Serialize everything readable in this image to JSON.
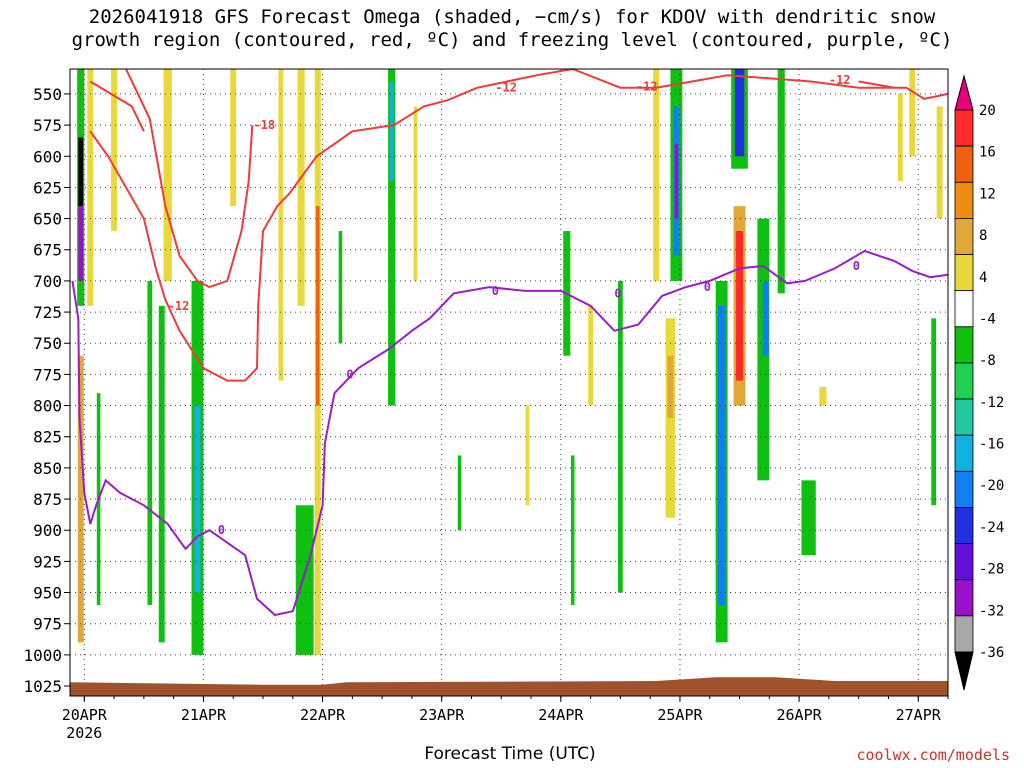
{
  "title": {
    "line1": "2026041918 GFS Forecast Omega (shaded, −cm/s) for KDOV with dendritic snow",
    "line2": "growth region (contoured, red, ºC) and freezing level (contoured, purple, ºC)"
  },
  "credit": "coolwx.com/models",
  "chart_data": {
    "type": "heatmap",
    "xlabel": "Forecast Time (UTC)",
    "x_ticks": [
      {
        "label": "20APR",
        "sub": "2026",
        "day": 0
      },
      {
        "label": "21APR",
        "day": 1
      },
      {
        "label": "22APR",
        "day": 2
      },
      {
        "label": "23APR",
        "day": 3
      },
      {
        "label": "24APR",
        "day": 4
      },
      {
        "label": "25APR",
        "day": 5
      },
      {
        "label": "26APR",
        "day": 6
      },
      {
        "label": "27APR",
        "day": 7
      }
    ],
    "xlim_days": [
      -0.12,
      7.25
    ],
    "y_levels": [
      550,
      575,
      600,
      625,
      650,
      675,
      700,
      725,
      750,
      775,
      800,
      825,
      850,
      875,
      900,
      925,
      950,
      975,
      1000,
      1025
    ],
    "ylim_hpa": [
      530,
      1033
    ],
    "grid": "dotted",
    "colorbar": {
      "labels": [
        "20",
        "16",
        "12",
        "8",
        "4",
        "-4",
        "-8",
        "-12",
        "-16",
        "-20",
        "-24",
        "-28",
        "-32",
        "-36"
      ],
      "colors": [
        "#e8007a",
        "#ff2b2b",
        "#f06010",
        "#f08c14",
        "#e0a838",
        "#e8d83a",
        "#ffffff",
        "#10c010",
        "#20d050",
        "#20c8a0",
        "#10b0e0",
        "#1080f0",
        "#2030e0",
        "#6010d8",
        "#9a10c8",
        "#a8a8a8",
        "#000000"
      ]
    },
    "surface_color": "#a0522d",
    "omega_cells": [
      {
        "day": 0.05,
        "p1": 530,
        "p2": 720,
        "w": 0.05,
        "c": "#e8d83a"
      },
      {
        "day": 0.25,
        "p1": 530,
        "p2": 660,
        "w": 0.05,
        "c": "#e8d83a"
      },
      {
        "day": 0.7,
        "p1": 530,
        "p2": 700,
        "w": 0.07,
        "c": "#e8d83a"
      },
      {
        "day": -0.03,
        "p1": 530,
        "p2": 720,
        "w": 0.06,
        "c": "#10c010"
      },
      {
        "day": -0.03,
        "p1": 585,
        "p2": 640,
        "w": 0.04,
        "c": "#000000"
      },
      {
        "day": -0.03,
        "p1": 640,
        "p2": 700,
        "w": 0.04,
        "c": "#9a10c8"
      },
      {
        "day": -0.03,
        "p1": 760,
        "p2": 990,
        "w": 0.05,
        "c": "#e0a838"
      },
      {
        "day": 0.12,
        "p1": 790,
        "p2": 960,
        "w": 0.03,
        "c": "#10c010"
      },
      {
        "day": 0.55,
        "p1": 700,
        "p2": 960,
        "w": 0.04,
        "c": "#10c010"
      },
      {
        "day": 0.65,
        "p1": 720,
        "p2": 990,
        "w": 0.05,
        "c": "#10c010"
      },
      {
        "day": 0.95,
        "p1": 700,
        "p2": 1000,
        "w": 0.1,
        "c": "#10c010"
      },
      {
        "day": 0.95,
        "p1": 800,
        "p2": 950,
        "w": 0.05,
        "c": "#10b0e0"
      },
      {
        "day": 1.25,
        "p1": 530,
        "p2": 640,
        "w": 0.05,
        "c": "#e8d83a"
      },
      {
        "day": 1.65,
        "p1": 530,
        "p2": 780,
        "w": 0.04,
        "c": "#e8d83a"
      },
      {
        "day": 1.82,
        "p1": 530,
        "p2": 720,
        "w": 0.06,
        "c": "#e8d83a"
      },
      {
        "day": 1.85,
        "p1": 880,
        "p2": 1000,
        "w": 0.15,
        "c": "#10c010"
      },
      {
        "day": 1.96,
        "p1": 530,
        "p2": 1000,
        "w": 0.05,
        "c": "#e8d83a"
      },
      {
        "day": 1.96,
        "p1": 640,
        "p2": 800,
        "w": 0.03,
        "c": "#f06010"
      },
      {
        "day": 2.15,
        "p1": 660,
        "p2": 750,
        "w": 0.03,
        "c": "#10c010"
      },
      {
        "day": 2.58,
        "p1": 530,
        "p2": 800,
        "w": 0.06,
        "c": "#10c010"
      },
      {
        "day": 2.58,
        "p1": 540,
        "p2": 620,
        "w": 0.03,
        "c": "#10b0e0"
      },
      {
        "day": 2.78,
        "p1": 560,
        "p2": 700,
        "w": 0.03,
        "c": "#e8d83a"
      },
      {
        "day": 3.15,
        "p1": 840,
        "p2": 900,
        "w": 0.03,
        "c": "#10c010"
      },
      {
        "day": 3.72,
        "p1": 800,
        "p2": 880,
        "w": 0.03,
        "c": "#e8d83a"
      },
      {
        "day": 4.05,
        "p1": 660,
        "p2": 760,
        "w": 0.06,
        "c": "#10c010"
      },
      {
        "day": 4.1,
        "p1": 840,
        "p2": 960,
        "w": 0.03,
        "c": "#10c010"
      },
      {
        "day": 4.25,
        "p1": 720,
        "p2": 800,
        "w": 0.04,
        "c": "#e8d83a"
      },
      {
        "day": 4.5,
        "p1": 700,
        "p2": 950,
        "w": 0.04,
        "c": "#10c010"
      },
      {
        "day": 4.8,
        "p1": 530,
        "p2": 700,
        "w": 0.05,
        "c": "#e8d83a"
      },
      {
        "day": 4.97,
        "p1": 530,
        "p2": 700,
        "w": 0.1,
        "c": "#10c010"
      },
      {
        "day": 4.97,
        "p1": 560,
        "p2": 680,
        "w": 0.05,
        "c": "#1080f0"
      },
      {
        "day": 4.97,
        "p1": 590,
        "p2": 650,
        "w": 0.03,
        "c": "#9a10c8"
      },
      {
        "day": 4.92,
        "p1": 730,
        "p2": 890,
        "w": 0.08,
        "c": "#e8d83a"
      },
      {
        "day": 4.92,
        "p1": 760,
        "p2": 810,
        "w": 0.05,
        "c": "#e0a838"
      },
      {
        "day": 5.35,
        "p1": 700,
        "p2": 990,
        "w": 0.1,
        "c": "#10c010"
      },
      {
        "day": 5.35,
        "p1": 720,
        "p2": 960,
        "w": 0.06,
        "c": "#1080f0"
      },
      {
        "day": 5.5,
        "p1": 530,
        "p2": 610,
        "w": 0.14,
        "c": "#10c010"
      },
      {
        "day": 5.5,
        "p1": 530,
        "p2": 600,
        "w": 0.08,
        "c": "#2030e0"
      },
      {
        "day": 5.5,
        "p1": 640,
        "p2": 800,
        "w": 0.1,
        "c": "#e0a838"
      },
      {
        "day": 5.5,
        "p1": 660,
        "p2": 780,
        "w": 0.06,
        "c": "#ff2b2b"
      },
      {
        "day": 5.7,
        "p1": 650,
        "p2": 860,
        "w": 0.1,
        "c": "#10c010"
      },
      {
        "day": 5.72,
        "p1": 700,
        "p2": 760,
        "w": 0.05,
        "c": "#1080f0"
      },
      {
        "day": 5.85,
        "p1": 530,
        "p2": 710,
        "w": 0.06,
        "c": "#10c010"
      },
      {
        "day": 6.08,
        "p1": 860,
        "p2": 920,
        "w": 0.12,
        "c": "#10c010"
      },
      {
        "day": 6.2,
        "p1": 785,
        "p2": 800,
        "w": 0.06,
        "c": "#e8d83a"
      },
      {
        "day": 6.85,
        "p1": 550,
        "p2": 620,
        "w": 0.04,
        "c": "#e8d83a"
      },
      {
        "day": 6.95,
        "p1": 530,
        "p2": 600,
        "w": 0.05,
        "c": "#e8d83a"
      },
      {
        "day": 7.13,
        "p1": 730,
        "p2": 880,
        "w": 0.04,
        "c": "#10c010"
      },
      {
        "day": 7.18,
        "p1": 560,
        "p2": 650,
        "w": 0.05,
        "c": "#e8d83a"
      }
    ],
    "contours_red": [
      {
        "label": "-18",
        "label_at": [
          1.42,
          575
        ],
        "points": [
          [
            0.35,
            530
          ],
          [
            0.55,
            570
          ],
          [
            0.68,
            640
          ],
          [
            0.8,
            680
          ],
          [
            0.95,
            700
          ],
          [
            1.05,
            705
          ],
          [
            1.2,
            700
          ],
          [
            1.32,
            660
          ],
          [
            1.38,
            620
          ],
          [
            1.41,
            575
          ]
        ]
      },
      {
        "label": "-12",
        "label_at": [
          0.7,
          720
        ],
        "points": [
          [
            0.05,
            580
          ],
          [
            0.2,
            600
          ],
          [
            0.35,
            625
          ],
          [
            0.5,
            650
          ],
          [
            0.6,
            690
          ],
          [
            0.68,
            715
          ],
          [
            0.8,
            740
          ],
          [
            1.0,
            770
          ],
          [
            1.2,
            780
          ],
          [
            1.35,
            780
          ],
          [
            1.45,
            770
          ],
          [
            1.46,
            720
          ],
          [
            1.5,
            660
          ],
          [
            1.62,
            640
          ],
          [
            1.72,
            630
          ],
          [
            1.95,
            600
          ],
          [
            2.25,
            580
          ],
          [
            2.6,
            575
          ],
          [
            2.85,
            560
          ],
          [
            3.05,
            555
          ],
          [
            3.3,
            545
          ],
          [
            3.55,
            540
          ],
          [
            3.8,
            535
          ],
          [
            4.1,
            530
          ]
        ]
      },
      {
        "label": "-12",
        "label_at": [
          3.45,
          545
        ],
        "points": [
          [
            4.1,
            530
          ],
          [
            4.5,
            545
          ],
          [
            4.8,
            545
          ],
          [
            5.1,
            540
          ],
          [
            5.4,
            535
          ],
          [
            6.1,
            540
          ],
          [
            6.5,
            545
          ],
          [
            6.9,
            545
          ],
          [
            7.05,
            554
          ],
          [
            7.25,
            550
          ]
        ]
      },
      {
        "label": "-12",
        "label_at": [
          4.63,
          544
        ],
        "points": [
          [
            0.05,
            540
          ],
          [
            0.4,
            560
          ],
          [
            0.5,
            580
          ]
        ]
      },
      {
        "label": "-12",
        "label_at": [
          6.25,
          539
        ],
        "points": [
          [
            6.5,
            540
          ],
          [
            6.8,
            545
          ]
        ]
      }
    ],
    "contour_freezing": {
      "label": "0",
      "label_points": [
        [
          1.12,
          900
        ],
        [
          2.2,
          775
        ],
        [
          3.42,
          708
        ],
        [
          4.45,
          710
        ],
        [
          5.2,
          705
        ],
        [
          6.45,
          688
        ]
      ],
      "points": [
        [
          -0.1,
          700
        ],
        [
          -0.05,
          730
        ],
        [
          -0.04,
          810
        ],
        [
          0.0,
          870
        ],
        [
          0.05,
          895
        ],
        [
          0.1,
          880
        ],
        [
          0.18,
          860
        ],
        [
          0.3,
          870
        ],
        [
          0.5,
          880
        ],
        [
          0.7,
          895
        ],
        [
          0.85,
          915
        ],
        [
          0.95,
          905
        ],
        [
          1.05,
          900
        ],
        [
          1.2,
          910
        ],
        [
          1.35,
          920
        ],
        [
          1.45,
          955
        ],
        [
          1.6,
          968
        ],
        [
          1.75,
          965
        ],
        [
          1.9,
          920
        ],
        [
          2.0,
          880
        ],
        [
          2.02,
          830
        ],
        [
          2.1,
          790
        ],
        [
          2.3,
          770
        ],
        [
          2.55,
          755
        ],
        [
          2.75,
          740
        ],
        [
          2.9,
          730
        ],
        [
          3.1,
          710
        ],
        [
          3.4,
          705
        ],
        [
          3.7,
          708
        ],
        [
          4.0,
          708
        ],
        [
          4.25,
          720
        ],
        [
          4.45,
          740
        ],
        [
          4.65,
          735
        ],
        [
          4.85,
          712
        ],
        [
          5.05,
          705
        ],
        [
          5.25,
          700
        ],
        [
          5.5,
          690
        ],
        [
          5.7,
          688
        ],
        [
          5.9,
          702
        ],
        [
          6.05,
          700
        ],
        [
          6.3,
          690
        ],
        [
          6.55,
          676
        ],
        [
          6.8,
          684
        ],
        [
          6.95,
          692
        ],
        [
          7.1,
          697
        ],
        [
          7.25,
          695
        ]
      ]
    }
  }
}
